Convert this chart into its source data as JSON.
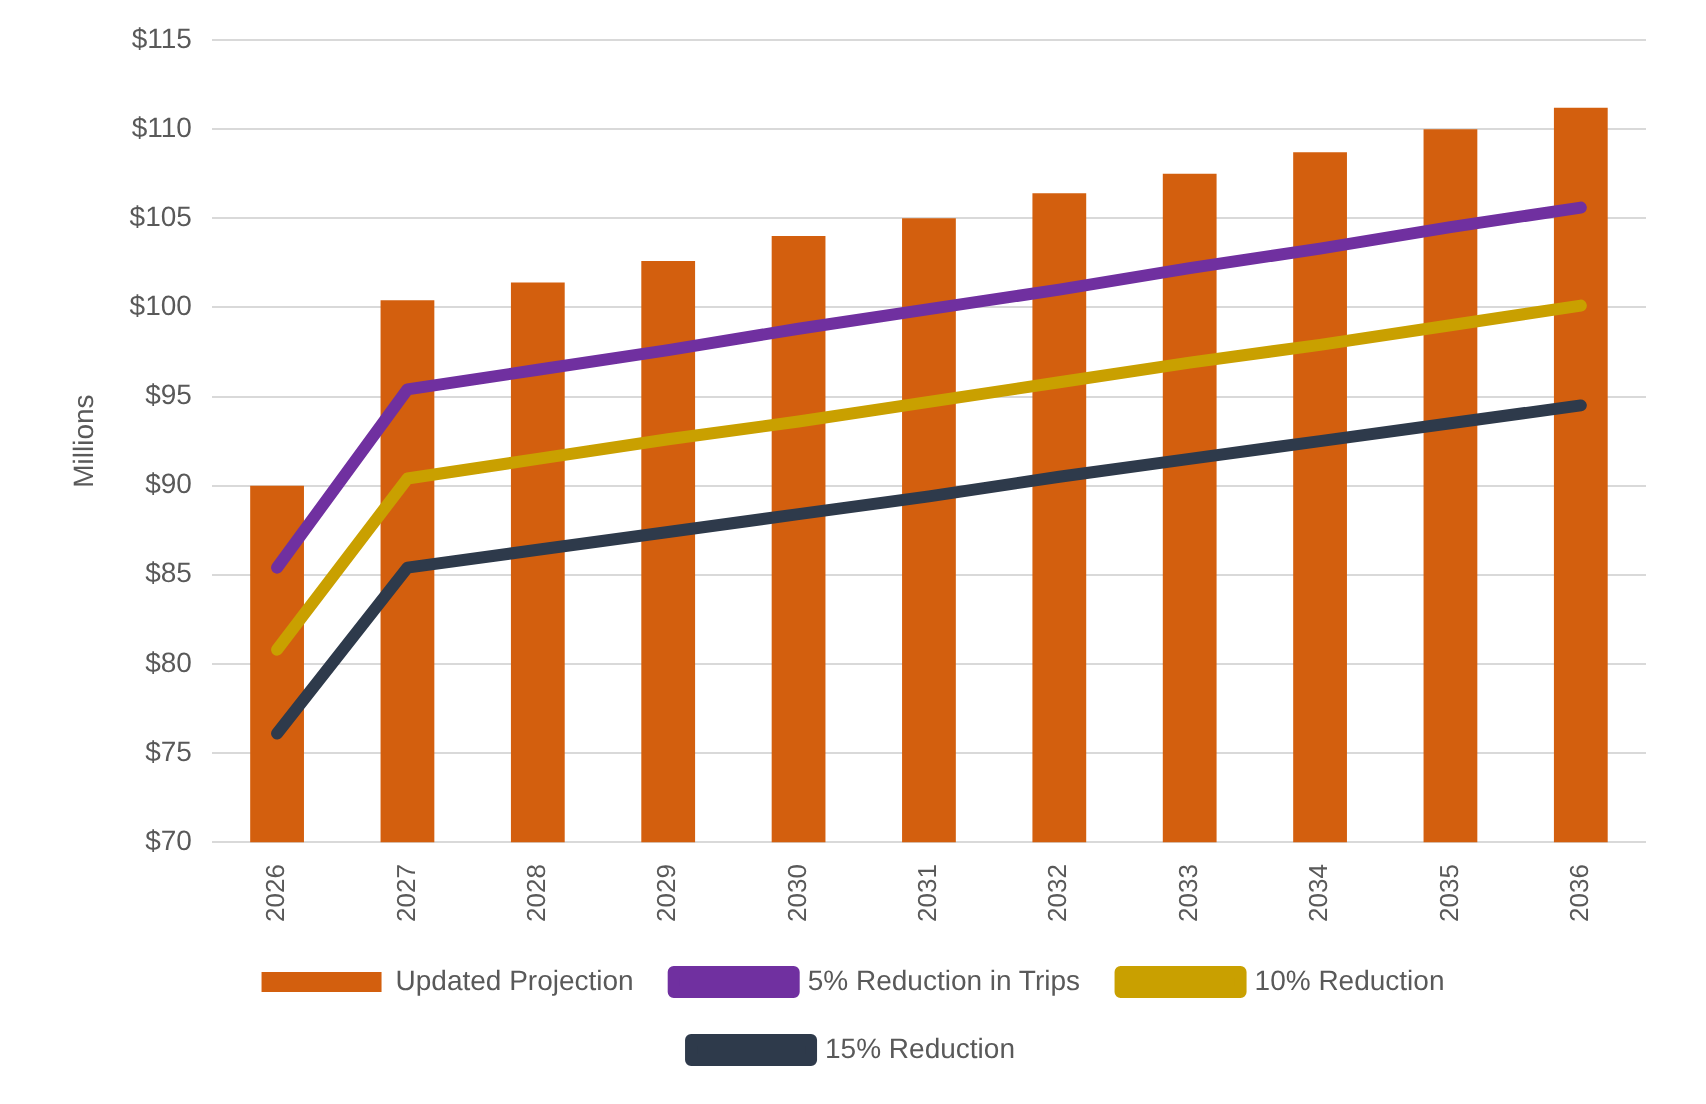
{
  "chart_data": {
    "type": "bar",
    "ylabel": "Millions",
    "categories": [
      "2026",
      "2027",
      "2028",
      "2029",
      "2030",
      "2031",
      "2032",
      "2033",
      "2034",
      "2035",
      "2036"
    ],
    "series": [
      {
        "name": "Updated Projection",
        "color": "#d35f0e",
        "values": [
          90,
          100.4,
          101.4,
          102.6,
          104,
          105,
          106.4,
          107.5,
          108.7,
          110,
          111.2
        ]
      },
      {
        "name": "5% Reduction in Trips",
        "type": "line",
        "color": "#7030a0",
        "values": [
          85.4,
          95.4,
          96.5,
          97.6,
          98.8,
          99.9,
          101.0,
          102.2,
          103.3,
          104.5,
          105.6
        ]
      },
      {
        "name": "10% Reduction",
        "type": "line",
        "color": "#c9a000",
        "values": [
          80.8,
          90.4,
          91.5,
          92.6,
          93.6,
          94.7,
          95.8,
          96.9,
          97.9,
          99.0,
          100.1
        ]
      },
      {
        "name": "15% Reduction",
        "type": "line",
        "color": "#2e3a4b",
        "values": [
          76.1,
          85.4,
          86.4,
          87.4,
          88.4,
          89.4,
          90.5,
          91.5,
          92.5,
          93.5,
          94.5
        ]
      }
    ],
    "ylim": [
      70,
      115
    ],
    "yticks": [
      {
        "value": 70,
        "label": "$70"
      },
      {
        "value": 75,
        "label": "$75"
      },
      {
        "value": 80,
        "label": "$80"
      },
      {
        "value": 85,
        "label": "$85"
      },
      {
        "value": 90,
        "label": "$90"
      },
      {
        "value": 95,
        "label": "$95"
      },
      {
        "value": 100,
        "label": "$100"
      },
      {
        "value": 105,
        "label": "$105"
      },
      {
        "value": 110,
        "label": "$110"
      },
      {
        "value": 115,
        "label": "$115"
      }
    ],
    "grid": "y",
    "legend": "bottom",
    "marker": "none",
    "line_style": "solid"
  }
}
